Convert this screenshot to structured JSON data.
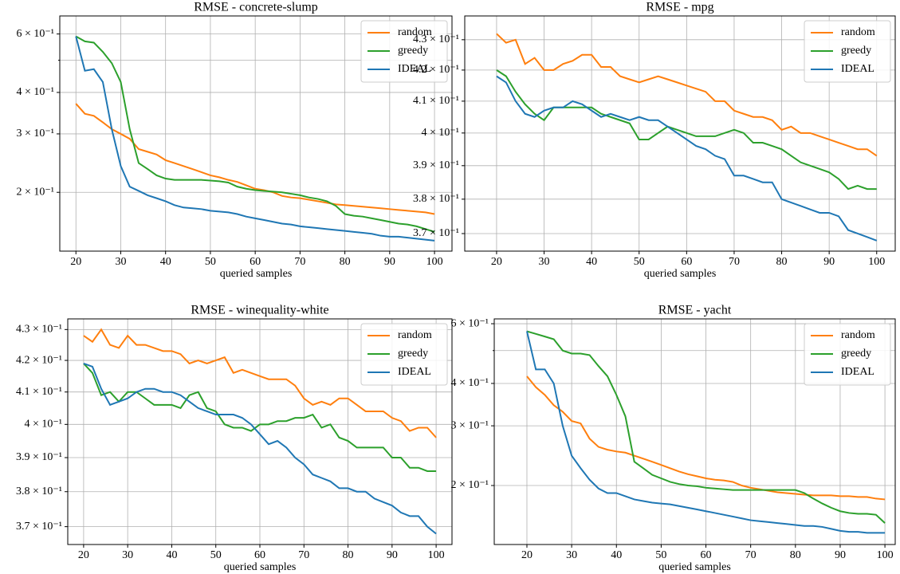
{
  "chart_data": [
    {
      "type": "line",
      "title": "RMSE - concrete-slump",
      "xlabel": "queried samples",
      "log_y": true,
      "grid": true,
      "legend": "upper right",
      "xlim": [
        16.4,
        103.9
      ],
      "ylim": [
        0.133,
        0.68
      ],
      "xticks": [
        20,
        30,
        40,
        50,
        60,
        70,
        80,
        90,
        100
      ],
      "yticks": [
        {
          "value": 0.6,
          "label": "6 × 10⁻¹"
        },
        {
          "value": 0.4,
          "label": "4 × 10⁻¹"
        },
        {
          "value": 0.3,
          "label": "3 × 10⁻¹"
        },
        {
          "value": 0.2,
          "label": "2 × 10⁻¹"
        }
      ],
      "minor_yticks": [
        0.5
      ],
      "x": [
        20,
        22,
        24,
        26,
        28,
        30,
        32,
        34,
        36,
        38,
        40,
        42,
        44,
        46,
        48,
        50,
        52,
        54,
        56,
        58,
        60,
        62,
        64,
        66,
        68,
        70,
        72,
        74,
        76,
        78,
        80,
        82,
        84,
        86,
        88,
        90,
        92,
        94,
        96,
        98,
        100
      ],
      "series": [
        {
          "name": "random",
          "color": "#ff7f0e",
          "values": [
            0.37,
            0.345,
            0.34,
            0.325,
            0.31,
            0.3,
            0.29,
            0.27,
            0.265,
            0.26,
            0.25,
            0.245,
            0.24,
            0.235,
            0.23,
            0.225,
            0.222,
            0.218,
            0.215,
            0.21,
            0.205,
            0.203,
            0.2,
            0.195,
            0.193,
            0.192,
            0.19,
            0.188,
            0.186,
            0.184,
            0.183,
            0.182,
            0.181,
            0.18,
            0.179,
            0.178,
            0.177,
            0.176,
            0.175,
            0.174,
            0.172
          ]
        },
        {
          "name": "greedy",
          "color": "#2ca02c",
          "values": [
            0.59,
            0.57,
            0.565,
            0.53,
            0.49,
            0.43,
            0.31,
            0.245,
            0.235,
            0.225,
            0.22,
            0.218,
            0.218,
            0.218,
            0.218,
            0.217,
            0.216,
            0.214,
            0.208,
            0.205,
            0.203,
            0.202,
            0.201,
            0.2,
            0.198,
            0.196,
            0.193,
            0.191,
            0.188,
            0.182,
            0.172,
            0.17,
            0.169,
            0.167,
            0.165,
            0.163,
            0.161,
            0.16,
            0.158,
            0.155,
            0.152
          ]
        },
        {
          "name": "IDEAL",
          "color": "#1f77b4",
          "values": [
            0.59,
            0.465,
            0.47,
            0.43,
            0.31,
            0.24,
            0.208,
            0.202,
            0.196,
            0.192,
            0.188,
            0.183,
            0.18,
            0.179,
            0.178,
            0.176,
            0.175,
            0.174,
            0.172,
            0.169,
            0.167,
            0.165,
            0.163,
            0.161,
            0.16,
            0.158,
            0.157,
            0.156,
            0.155,
            0.154,
            0.153,
            0.152,
            0.151,
            0.15,
            0.148,
            0.147,
            0.147,
            0.146,
            0.145,
            0.144,
            0.143
          ]
        }
      ]
    },
    {
      "type": "line",
      "title": "RMSE - mpg",
      "xlabel": "queried samples",
      "log_y": true,
      "grid": true,
      "legend": "upper right",
      "xlim": [
        13.3,
        103.9
      ],
      "ylim": [
        0.365,
        0.438
      ],
      "xticks": [
        20,
        30,
        40,
        50,
        60,
        70,
        80,
        90,
        100
      ],
      "yticks": [
        {
          "value": 0.43,
          "label": "4.3 × 10⁻¹"
        },
        {
          "value": 0.42,
          "label": "4.2 × 10⁻¹"
        },
        {
          "value": 0.41,
          "label": "4.1 × 10⁻¹"
        },
        {
          "value": 0.4,
          "label": "4 × 10⁻¹"
        },
        {
          "value": 0.39,
          "label": "3.9 × 10⁻¹"
        },
        {
          "value": 0.38,
          "label": "3.8 × 10⁻¹"
        },
        {
          "value": 0.37,
          "label": "3.7 × 10⁻¹"
        }
      ],
      "x": [
        20,
        22,
        24,
        26,
        28,
        30,
        32,
        34,
        36,
        38,
        40,
        42,
        44,
        46,
        48,
        50,
        52,
        54,
        56,
        58,
        60,
        62,
        64,
        66,
        68,
        70,
        72,
        74,
        76,
        78,
        80,
        82,
        84,
        86,
        88,
        90,
        92,
        94,
        96,
        98,
        100
      ],
      "series": [
        {
          "name": "random",
          "color": "#ff7f0e",
          "values": [
            0.432,
            0.429,
            0.43,
            0.422,
            0.424,
            0.42,
            0.42,
            0.422,
            0.423,
            0.425,
            0.425,
            0.421,
            0.421,
            0.418,
            0.417,
            0.416,
            0.417,
            0.418,
            0.417,
            0.416,
            0.415,
            0.414,
            0.413,
            0.41,
            0.41,
            0.407,
            0.406,
            0.405,
            0.405,
            0.404,
            0.401,
            0.402,
            0.4,
            0.4,
            0.399,
            0.398,
            0.397,
            0.396,
            0.395,
            0.395,
            0.393
          ]
        },
        {
          "name": "greedy",
          "color": "#2ca02c",
          "values": [
            0.42,
            0.418,
            0.413,
            0.409,
            0.406,
            0.404,
            0.408,
            0.408,
            0.408,
            0.408,
            0.408,
            0.406,
            0.405,
            0.404,
            0.403,
            0.398,
            0.398,
            0.4,
            0.402,
            0.401,
            0.4,
            0.399,
            0.399,
            0.399,
            0.4,
            0.401,
            0.4,
            0.397,
            0.397,
            0.396,
            0.395,
            0.393,
            0.391,
            0.39,
            0.389,
            0.388,
            0.386,
            0.383,
            0.384,
            0.383,
            0.383
          ]
        },
        {
          "name": "IDEAL",
          "color": "#1f77b4",
          "values": [
            0.418,
            0.416,
            0.41,
            0.406,
            0.405,
            0.407,
            0.408,
            0.408,
            0.41,
            0.409,
            0.407,
            0.405,
            0.406,
            0.405,
            0.404,
            0.405,
            0.404,
            0.404,
            0.402,
            0.4,
            0.398,
            0.396,
            0.395,
            0.393,
            0.392,
            0.387,
            0.387,
            0.386,
            0.385,
            0.385,
            0.38,
            0.379,
            0.378,
            0.377,
            0.376,
            0.376,
            0.375,
            0.371,
            0.37,
            0.369,
            0.368
          ]
        }
      ]
    },
    {
      "type": "line",
      "title": "RMSE - winequality-white",
      "xlabel": "queried samples",
      "log_y": true,
      "grid": true,
      "legend": "upper right",
      "xlim": [
        16.4,
        103.6
      ],
      "ylim": [
        0.365,
        0.4335
      ],
      "xticks": [
        20,
        30,
        40,
        50,
        60,
        70,
        80,
        90,
        100
      ],
      "yticks": [
        {
          "value": 0.43,
          "label": "4.3 × 10⁻¹"
        },
        {
          "value": 0.42,
          "label": "4.2 × 10⁻¹"
        },
        {
          "value": 0.41,
          "label": "4.1 × 10⁻¹"
        },
        {
          "value": 0.4,
          "label": "4 × 10⁻¹"
        },
        {
          "value": 0.39,
          "label": "3.9 × 10⁻¹"
        },
        {
          "value": 0.38,
          "label": "3.8 × 10⁻¹"
        },
        {
          "value": 0.37,
          "label": "3.7 × 10⁻¹"
        }
      ],
      "x": [
        20,
        22,
        24,
        26,
        28,
        30,
        32,
        34,
        36,
        38,
        40,
        42,
        44,
        46,
        48,
        50,
        52,
        54,
        56,
        58,
        60,
        62,
        64,
        66,
        68,
        70,
        72,
        74,
        76,
        78,
        80,
        82,
        84,
        86,
        88,
        90,
        92,
        94,
        96,
        98,
        100
      ],
      "series": [
        {
          "name": "random",
          "color": "#ff7f0e",
          "values": [
            0.428,
            0.426,
            0.43,
            0.425,
            0.424,
            0.428,
            0.425,
            0.425,
            0.424,
            0.423,
            0.423,
            0.422,
            0.419,
            0.42,
            0.419,
            0.42,
            0.421,
            0.416,
            0.417,
            0.416,
            0.415,
            0.414,
            0.414,
            0.414,
            0.412,
            0.408,
            0.406,
            0.407,
            0.406,
            0.408,
            0.408,
            0.406,
            0.404,
            0.404,
            0.404,
            0.402,
            0.401,
            0.398,
            0.399,
            0.399,
            0.396
          ]
        },
        {
          "name": "greedy",
          "color": "#2ca02c",
          "values": [
            0.419,
            0.416,
            0.409,
            0.41,
            0.407,
            0.41,
            0.41,
            0.408,
            0.406,
            0.406,
            0.406,
            0.405,
            0.409,
            0.41,
            0.405,
            0.404,
            0.4,
            0.399,
            0.399,
            0.398,
            0.4,
            0.4,
            0.401,
            0.401,
            0.402,
            0.402,
            0.403,
            0.399,
            0.4,
            0.396,
            0.395,
            0.393,
            0.393,
            0.393,
            0.393,
            0.39,
            0.39,
            0.387,
            0.387,
            0.386,
            0.386
          ]
        },
        {
          "name": "IDEAL",
          "color": "#1f77b4",
          "values": [
            0.419,
            0.418,
            0.411,
            0.406,
            0.407,
            0.408,
            0.41,
            0.411,
            0.411,
            0.41,
            0.41,
            0.409,
            0.407,
            0.405,
            0.404,
            0.403,
            0.403,
            0.403,
            0.402,
            0.4,
            0.397,
            0.394,
            0.395,
            0.393,
            0.39,
            0.388,
            0.385,
            0.384,
            0.383,
            0.381,
            0.381,
            0.38,
            0.38,
            0.378,
            0.377,
            0.376,
            0.374,
            0.373,
            0.373,
            0.37,
            0.368
          ]
        }
      ]
    },
    {
      "type": "line",
      "title": "RMSE - yacht",
      "xlabel": "queried samples",
      "log_y": true,
      "grid": true,
      "legend": "upper right",
      "xlim": [
        12.7,
        102.3
      ],
      "ylim": [
        0.134,
        0.62
      ],
      "xticks": [
        20,
        30,
        40,
        50,
        60,
        70,
        80,
        90,
        100
      ],
      "yticks": [
        {
          "value": 0.6,
          "label": "6 × 10⁻¹"
        },
        {
          "value": 0.4,
          "label": "4 × 10⁻¹"
        },
        {
          "value": 0.3,
          "label": "3 × 10⁻¹"
        },
        {
          "value": 0.2,
          "label": "2 × 10⁻¹"
        }
      ],
      "minor_yticks": [
        0.5
      ],
      "x": [
        20,
        22,
        24,
        26,
        28,
        30,
        32,
        34,
        36,
        38,
        40,
        42,
        44,
        46,
        48,
        50,
        52,
        54,
        56,
        58,
        60,
        62,
        64,
        66,
        68,
        70,
        72,
        74,
        76,
        78,
        80,
        82,
        84,
        86,
        88,
        90,
        92,
        94,
        96,
        98,
        100
      ],
      "series": [
        {
          "name": "random",
          "color": "#ff7f0e",
          "values": [
            0.42,
            0.39,
            0.37,
            0.345,
            0.33,
            0.31,
            0.305,
            0.275,
            0.26,
            0.255,
            0.252,
            0.25,
            0.245,
            0.24,
            0.235,
            0.23,
            0.225,
            0.22,
            0.216,
            0.213,
            0.21,
            0.208,
            0.207,
            0.205,
            0.2,
            0.197,
            0.195,
            0.193,
            0.191,
            0.19,
            0.189,
            0.188,
            0.187,
            0.187,
            0.187,
            0.186,
            0.186,
            0.185,
            0.185,
            0.183,
            0.182
          ]
        },
        {
          "name": "greedy",
          "color": "#2ca02c",
          "values": [
            0.57,
            0.56,
            0.55,
            0.54,
            0.5,
            0.49,
            0.49,
            0.485,
            0.45,
            0.42,
            0.37,
            0.32,
            0.235,
            0.225,
            0.215,
            0.21,
            0.205,
            0.202,
            0.2,
            0.199,
            0.197,
            0.196,
            0.195,
            0.194,
            0.194,
            0.194,
            0.194,
            0.194,
            0.194,
            0.194,
            0.194,
            0.19,
            0.183,
            0.177,
            0.172,
            0.168,
            0.166,
            0.165,
            0.165,
            0.164,
            0.155
          ]
        },
        {
          "name": "IDEAL",
          "color": "#1f77b4",
          "values": [
            0.57,
            0.44,
            0.44,
            0.4,
            0.3,
            0.245,
            0.225,
            0.208,
            0.196,
            0.19,
            0.19,
            0.186,
            0.182,
            0.18,
            0.178,
            0.177,
            0.176,
            0.174,
            0.172,
            0.17,
            0.168,
            0.166,
            0.164,
            0.162,
            0.16,
            0.158,
            0.157,
            0.156,
            0.155,
            0.154,
            0.153,
            0.152,
            0.152,
            0.151,
            0.149,
            0.147,
            0.146,
            0.146,
            0.145,
            0.145,
            0.145
          ]
        }
      ]
    }
  ]
}
